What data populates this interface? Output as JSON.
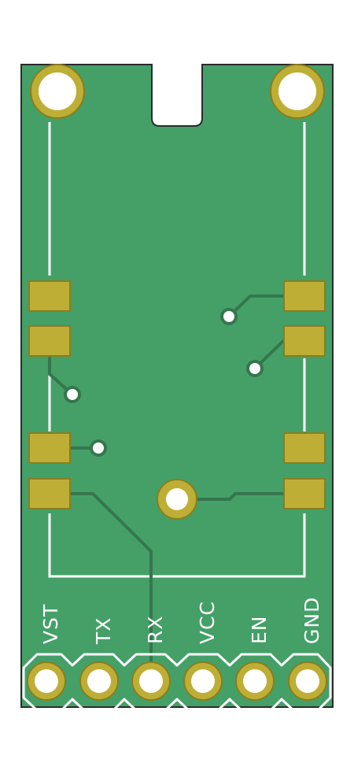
{
  "board": {
    "colors": {
      "substrate": "#44a067",
      "outline": "#2b2b2b",
      "silkscreen": "#ffffff",
      "copper_pad": "#bfae35",
      "pad_edge": "#8a7d1e",
      "trace": "#36764d",
      "drill": "#ffffff"
    },
    "mounting_holes": [
      "left-mounting-hole",
      "right-mounting-hole",
      "center-mounting-hole"
    ],
    "pads_left": [
      "pad-left-1",
      "pad-left-2",
      "pad-left-3",
      "pad-left-4"
    ],
    "pads_right": [
      "pad-right-1",
      "pad-right-2",
      "pad-right-3",
      "pad-right-4"
    ],
    "vias": [
      "via-1",
      "via-2",
      "via-3",
      "via-4"
    ],
    "header": {
      "pins": [
        {
          "label": "VST"
        },
        {
          "label": "TX"
        },
        {
          "label": "RX"
        },
        {
          "label": "VCC"
        },
        {
          "label": "EN"
        },
        {
          "label": "GND"
        }
      ]
    }
  }
}
